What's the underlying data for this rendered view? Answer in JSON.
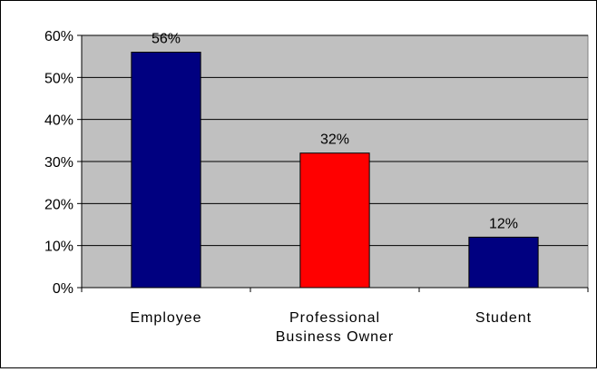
{
  "chart_data": {
    "type": "bar",
    "categories": [
      [
        "Employee"
      ],
      [
        "Professional",
        "Business Owner"
      ],
      [
        "Student"
      ]
    ],
    "values": [
      56,
      32,
      12
    ],
    "data_labels": [
      "56%",
      "32%",
      "12%"
    ],
    "bar_colors": [
      "#000080",
      "#ff0000",
      "#000080"
    ],
    "ylim": [
      0,
      60
    ],
    "yticks": [
      0,
      10,
      20,
      30,
      40,
      50,
      60
    ],
    "ytick_labels": [
      "0%",
      "10%",
      "20%",
      "30%",
      "40%",
      "50%",
      "60%"
    ],
    "plot_background": "#c0c0c0",
    "grid": true,
    "legend": false
  }
}
